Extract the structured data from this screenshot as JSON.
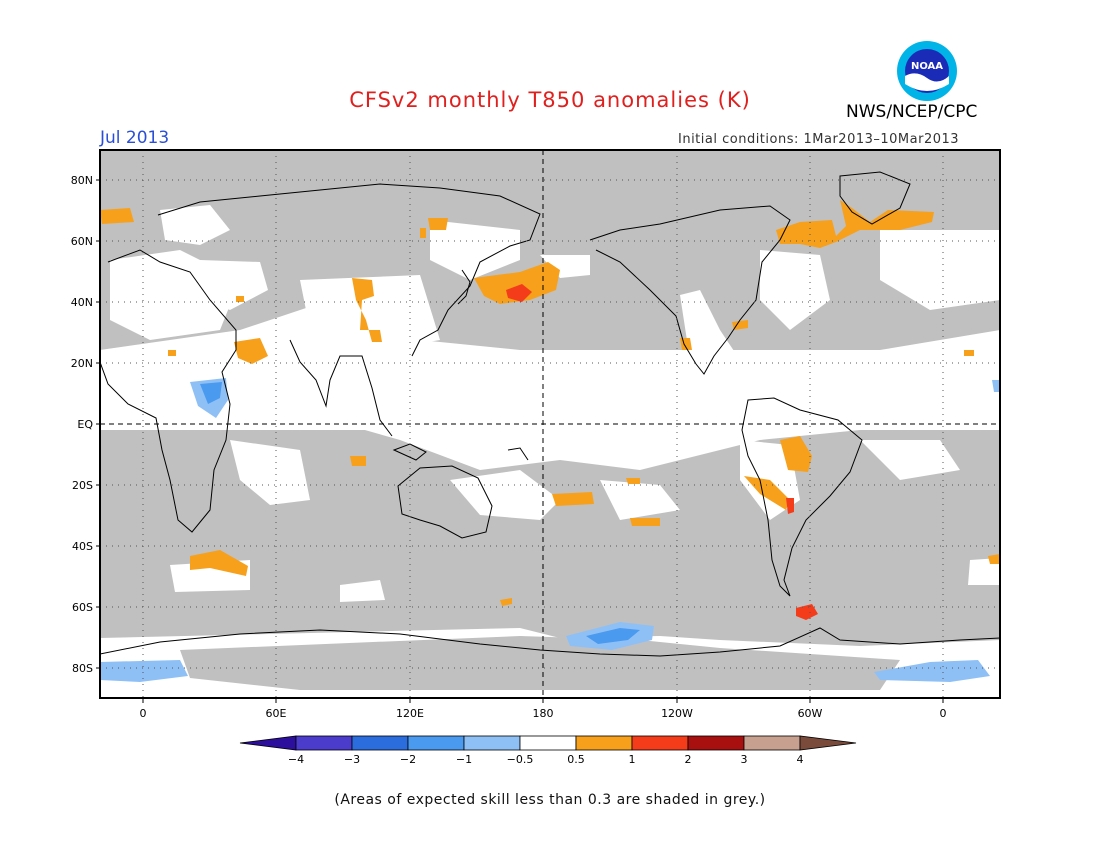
{
  "title": "CFSv2 monthly T850 anomalies (K)",
  "month": "Jul 2013",
  "agency": "NWS/NCEP/CPC",
  "initial_conditions": "Initial conditions: 1Mar2013–10Mar2013",
  "footnote": "(Areas of expected skill less than 0.3 are shaded in grey.)",
  "logo": {
    "text": "NOAA",
    "icon": "noaa-logo-icon"
  },
  "map": {
    "lat_labels": [
      "80N",
      "60N",
      "40N",
      "20N",
      "EQ",
      "20S",
      "40S",
      "60S",
      "80S"
    ],
    "lon_labels": [
      "0",
      "60E",
      "120E",
      "180",
      "120W",
      "60W",
      "0"
    ],
    "colors": {
      "low_skill": "#c0c0c0",
      "warm_05_1": "#f7a01b",
      "warm_1_2": "#f43c1a",
      "cool_neg1_neg05": "#8ec0f6",
      "cool_neg2_neg1": "#4a9af0"
    }
  },
  "colorbar": {
    "labels": [
      "−4",
      "−3",
      "−2",
      "−1",
      "−0.5",
      "0.5",
      "1",
      "2",
      "3",
      "4"
    ],
    "colors": [
      "#2c0f9c",
      "#4b3ccc",
      "#2b6ddc",
      "#4a9af0",
      "#8ec0f6",
      "#ffffff",
      "#f7a01b",
      "#f43c1a",
      "#a81010",
      "#c8a090",
      "#7a4a3a"
    ]
  }
}
